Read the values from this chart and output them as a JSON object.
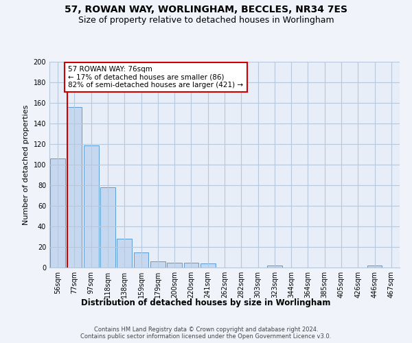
{
  "title1": "57, ROWAN WAY, WORLINGHAM, BECCLES, NR34 7ES",
  "title2": "Size of property relative to detached houses in Worlingham",
  "xlabel": "Distribution of detached houses by size in Worlingham",
  "ylabel": "Number of detached properties",
  "categories": [
    "56sqm",
    "77sqm",
    "97sqm",
    "118sqm",
    "138sqm",
    "159sqm",
    "179sqm",
    "200sqm",
    "220sqm",
    "241sqm",
    "262sqm",
    "282sqm",
    "303sqm",
    "323sqm",
    "344sqm",
    "364sqm",
    "385sqm",
    "405sqm",
    "426sqm",
    "446sqm",
    "467sqm"
  ],
  "values": [
    106,
    156,
    119,
    78,
    28,
    15,
    6,
    5,
    5,
    4,
    0,
    0,
    0,
    2,
    0,
    0,
    0,
    0,
    0,
    2,
    0
  ],
  "bar_color": "#c5d8f0",
  "bar_edge_color": "#5b9bd5",
  "vline_color": "#cc0000",
  "annotation_text": "57 ROWAN WAY: 76sqm\n← 17% of detached houses are smaller (86)\n82% of semi-detached houses are larger (421) →",
  "annotation_box_color": "#ffffff",
  "annotation_box_edge": "#cc0000",
  "ylim": [
    0,
    200
  ],
  "yticks": [
    0,
    20,
    40,
    60,
    80,
    100,
    120,
    140,
    160,
    180,
    200
  ],
  "footer": "Contains HM Land Registry data © Crown copyright and database right 2024.\nContains public sector information licensed under the Open Government Licence v3.0.",
  "bg_color": "#f0f4fa",
  "plot_bg_color": "#e8eef8",
  "grid_color": "#b8c8dc",
  "title1_fontsize": 10,
  "title2_fontsize": 9,
  "xlabel_fontsize": 8.5,
  "ylabel_fontsize": 8,
  "tick_fontsize": 7,
  "footer_fontsize": 6,
  "annot_fontsize": 7.5
}
